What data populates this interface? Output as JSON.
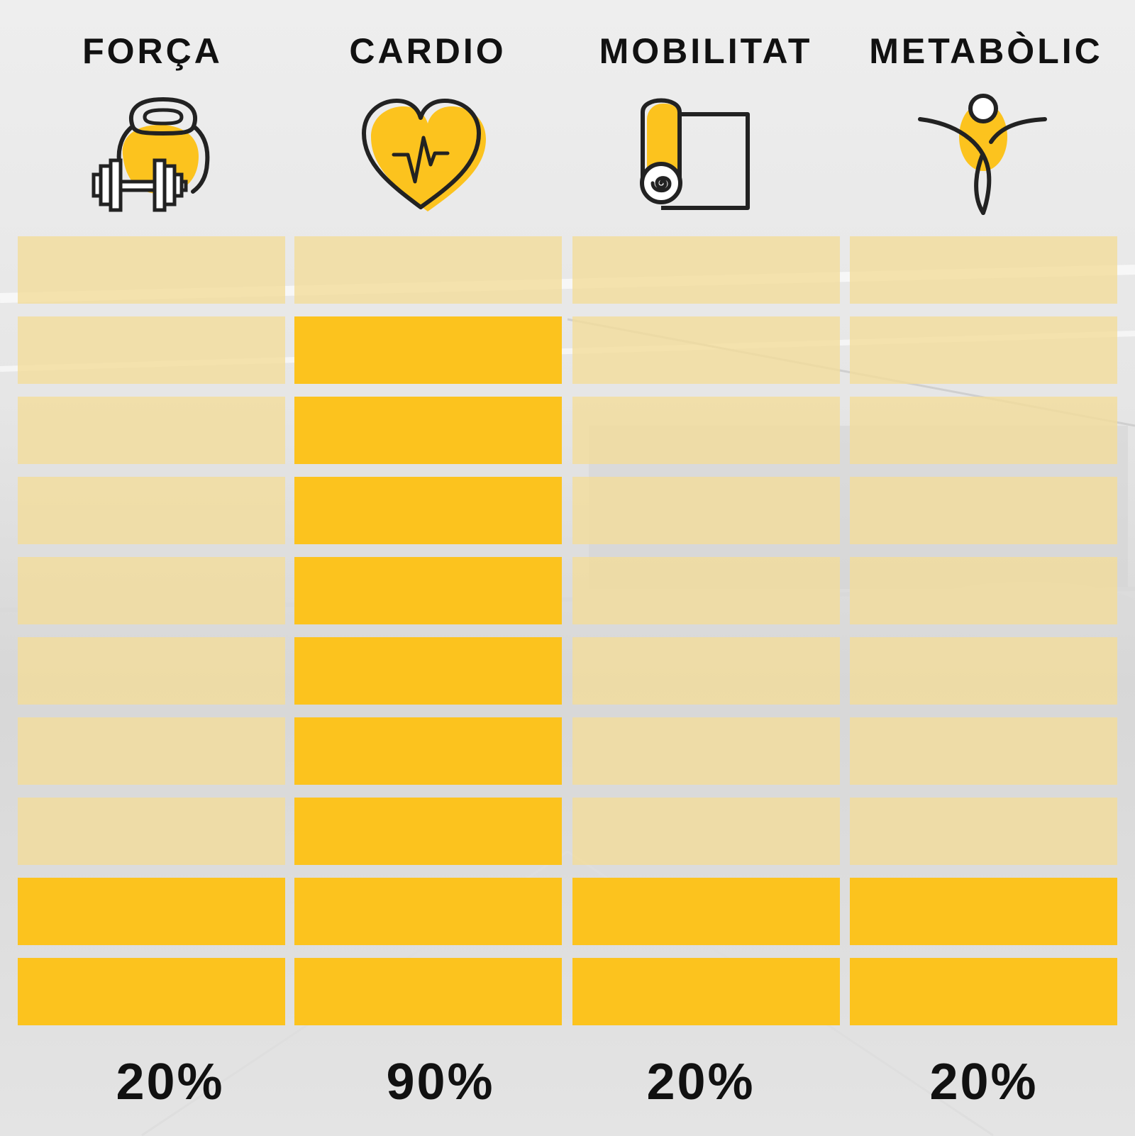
{
  "chart_data": {
    "type": "bar",
    "categories": [
      "FORÇA",
      "CARDIO",
      "MOBILITAT",
      "METABÒLIC"
    ],
    "values": [
      20,
      90,
      20,
      20
    ],
    "value_labels": [
      "20%",
      "90%",
      "20%",
      "20%"
    ],
    "max": 100,
    "segments": 10,
    "icons": [
      "kettlebell-dumbbell-icon",
      "heart-pulse-icon",
      "yoga-mat-icon",
      "stretching-figure-icon"
    ]
  },
  "colors": {
    "filled": "#fcc31e",
    "empty": "#f3dd98",
    "text": "#111111",
    "line": "#222222"
  }
}
